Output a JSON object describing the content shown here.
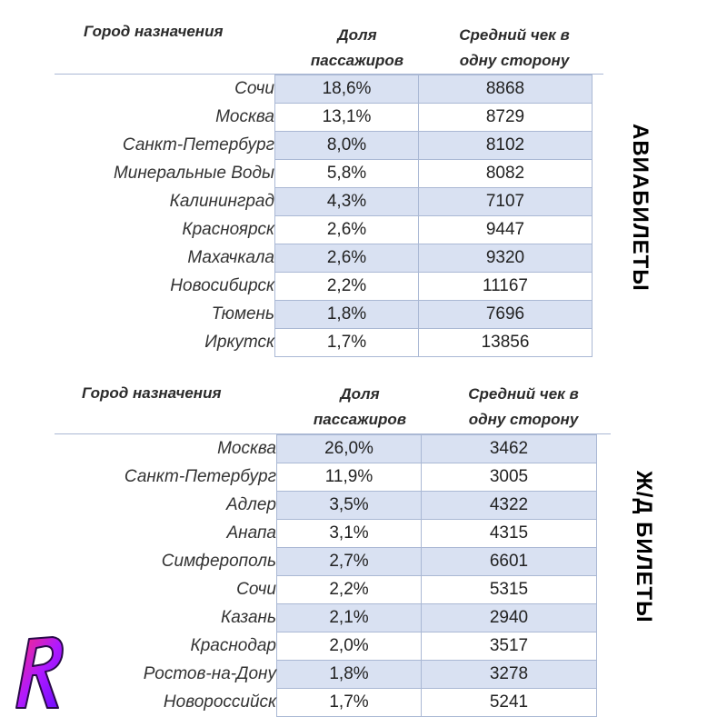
{
  "headers": {
    "city": "Город назначения",
    "share_line1": "Доля",
    "share_line2": "пассажиров",
    "check_line1": "Средний чек в",
    "check_line2": "одну сторону"
  },
  "air": {
    "side_label": "АВИАБИЛЕТЫ",
    "rows": [
      {
        "city": "Сочи",
        "share": "18,6%",
        "check": "8868"
      },
      {
        "city": "Москва",
        "share": "13,1%",
        "check": "8729"
      },
      {
        "city": "Санкт-Петербург",
        "share": "8,0%",
        "check": "8102"
      },
      {
        "city": "Минеральные Воды",
        "share": "5,8%",
        "check": "8082"
      },
      {
        "city": "Калининград",
        "share": "4,3%",
        "check": "7107"
      },
      {
        "city": "Красноярск",
        "share": "2,6%",
        "check": "9447"
      },
      {
        "city": "Махачкала",
        "share": "2,6%",
        "check": "9320"
      },
      {
        "city": "Новосибирск",
        "share": "2,2%",
        "check": "11167"
      },
      {
        "city": "Тюмень",
        "share": "1,8%",
        "check": "7696"
      },
      {
        "city": "Иркутск",
        "share": "1,7%",
        "check": "13856"
      }
    ]
  },
  "rail": {
    "side_label": "Ж/Д БИЛЕТЫ",
    "rows": [
      {
        "city": "Москва",
        "share": "26,0%",
        "check": "3462"
      },
      {
        "city": "Санкт-Петербург",
        "share": "11,9%",
        "check": "3005"
      },
      {
        "city": "Адлер",
        "share": "3,5%",
        "check": "4322"
      },
      {
        "city": "Анапа",
        "share": "3,1%",
        "check": "4315"
      },
      {
        "city": "Симферополь",
        "share": "2,7%",
        "check": "6601"
      },
      {
        "city": "Сочи",
        "share": "2,2%",
        "check": "5315"
      },
      {
        "city": "Казань",
        "share": "2,1%",
        "check": "2940"
      },
      {
        "city": "Краснодар",
        "share": "2,0%",
        "check": "3517"
      },
      {
        "city": "Ростов-на-Дону",
        "share": "1,8%",
        "check": "3278"
      },
      {
        "city": "Новороссийск",
        "share": "1,7%",
        "check": "5241"
      }
    ]
  },
  "colors": {
    "shade": "#d9e1f2",
    "border": "#aab8d4"
  },
  "logo": {
    "letter": "R",
    "icon": "brand-logo-icon"
  }
}
